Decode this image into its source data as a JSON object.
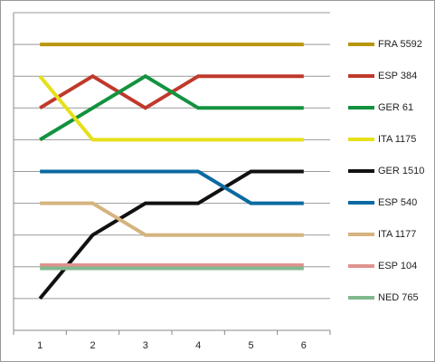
{
  "chart_data": {
    "type": "line",
    "categories": [
      "1",
      "2",
      "3",
      "4",
      "5",
      "6"
    ],
    "series": [
      {
        "name": "FRA 5592",
        "color": "#b8960c",
        "values": [
          9,
          9,
          9,
          9,
          9,
          9
        ]
      },
      {
        "name": "ESP 384",
        "color": "#c0392b",
        "values": [
          7,
          8,
          7,
          8,
          8,
          8
        ]
      },
      {
        "name": "GER 61",
        "color": "#13923f",
        "values": [
          6,
          7,
          8,
          7,
          7,
          7
        ]
      },
      {
        "name": "ITA 1175",
        "color": "#e6e01a",
        "values": [
          8,
          6,
          6,
          6,
          6,
          6
        ]
      },
      {
        "name": "GER 1510",
        "color": "#111111",
        "values": [
          1,
          3,
          4,
          4,
          5,
          5
        ]
      },
      {
        "name": "ESP 540",
        "color": "#0a6aa1",
        "values": [
          5,
          5,
          5,
          5,
          4,
          4
        ]
      },
      {
        "name": "ITA 1177",
        "color": "#d5b47f",
        "values": [
          4,
          4,
          3,
          3,
          3,
          3
        ]
      },
      {
        "name": "ESP 104",
        "color": "#e0928e",
        "values": [
          2.05,
          2.05,
          2.05,
          2.05,
          2.05,
          2.05
        ]
      },
      {
        "name": "NED 765",
        "color": "#7fba8e",
        "values": [
          1.95,
          1.95,
          1.95,
          1.95,
          1.95,
          1.95
        ]
      }
    ],
    "ylim": [
      0,
      10
    ],
    "yticks": [
      0,
      1,
      2,
      3,
      4,
      5,
      6,
      7,
      8,
      9,
      10
    ],
    "grid": true,
    "legend": "right"
  }
}
